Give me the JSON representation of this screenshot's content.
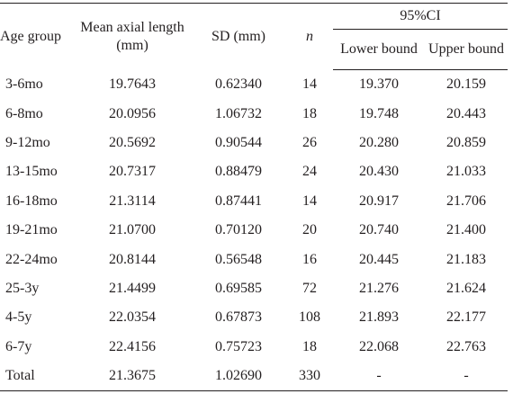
{
  "header": {
    "age_group": "Age group",
    "mean_axial_length": "Mean axial length (mm)",
    "sd": "SD (mm)",
    "n": "n",
    "ci": "95%CI",
    "lower": "Lower bound",
    "upper": "Upper bound"
  },
  "rows": [
    {
      "group": "3-6mo",
      "mean": "19.7643",
      "sd": "0.62340",
      "n": "14",
      "lower": "19.370",
      "upper": "20.159"
    },
    {
      "group": "6-8mo",
      "mean": "20.0956",
      "sd": "1.06732",
      "n": "18",
      "lower": "19.748",
      "upper": "20.443"
    },
    {
      "group": "9-12mo",
      "mean": "20.5692",
      "sd": "0.90544",
      "n": "26",
      "lower": "20.280",
      "upper": "20.859"
    },
    {
      "group": "13-15mo",
      "mean": "20.7317",
      "sd": "0.88479",
      "n": "24",
      "lower": "20.430",
      "upper": "21.033"
    },
    {
      "group": "16-18mo",
      "mean": "21.3114",
      "sd": "0.87441",
      "n": "14",
      "lower": "20.917",
      "upper": "21.706"
    },
    {
      "group": "19-21mo",
      "mean": "21.0700",
      "sd": "0.70120",
      "n": "20",
      "lower": "20.740",
      "upper": "21.400"
    },
    {
      "group": "22-24mo",
      "mean": "20.8144",
      "sd": "0.56548",
      "n": "16",
      "lower": "20.445",
      "upper": "21.183"
    },
    {
      "group": "25-3y",
      "mean": "21.4499",
      "sd": "0.69585",
      "n": "72",
      "lower": "21.276",
      "upper": "21.624"
    },
    {
      "group": "4-5y",
      "mean": "22.0354",
      "sd": "0.67873",
      "n": "108",
      "lower": "21.893",
      "upper": "22.177"
    },
    {
      "group": "6-7y",
      "mean": "22.4156",
      "sd": "0.75723",
      "n": "18",
      "lower": "22.068",
      "upper": "22.763"
    },
    {
      "group": "Total",
      "mean": "21.3675",
      "sd": "1.02690",
      "n": "330",
      "lower": "-",
      "upper": "-"
    }
  ]
}
